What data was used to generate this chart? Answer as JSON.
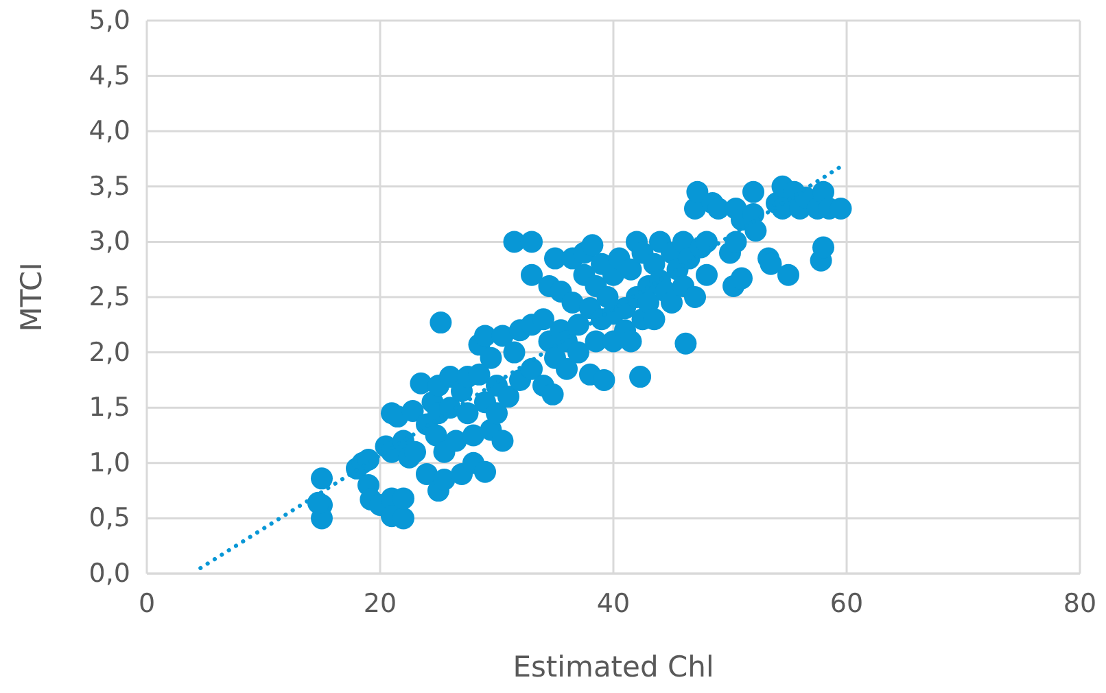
{
  "chart_data": {
    "type": "scatter",
    "xlabel": "Estimated Chl",
    "ylabel": "MTCI",
    "xlim": [
      0,
      80
    ],
    "xticks": [
      0,
      20,
      40,
      60,
      80
    ],
    "ylim": [
      0,
      5
    ],
    "yticks": [
      {
        "value": 0,
        "label": "0,0"
      },
      {
        "value": 0.5,
        "label": "0,5"
      },
      {
        "value": 1,
        "label": "1,0"
      },
      {
        "value": 1.5,
        "label": "1,5"
      },
      {
        "value": 2,
        "label": "2,0"
      },
      {
        "value": 2.5,
        "label": "2,5"
      },
      {
        "value": 3,
        "label": "3,0"
      },
      {
        "value": 3.5,
        "label": "3,5"
      },
      {
        "value": 4,
        "label": "4,0"
      },
      {
        "value": 4.5,
        "label": "4,5"
      },
      {
        "value": 5,
        "label": "5,0"
      }
    ],
    "grid": true,
    "series": [
      {
        "marker": "circle",
        "color": "#0897d6",
        "x": [
          15,
          15,
          15,
          14.7,
          18,
          18.5,
          19,
          19,
          19.2,
          20,
          20.5,
          21,
          21,
          21,
          21,
          22,
          22,
          21.5,
          22,
          22.5,
          22.8,
          23,
          23.5,
          24,
          24,
          24.5,
          24.8,
          25,
          25,
          25.2,
          25,
          25.5,
          25.5,
          26,
          26,
          26.5,
          27,
          27,
          27.5,
          27.5,
          28,
          28,
          28.5,
          28.5,
          29,
          29,
          29,
          29.5,
          29.5,
          30,
          30,
          30.5,
          30.5,
          31,
          31.5,
          31.5,
          32,
          32,
          33,
          33,
          33,
          33,
          34,
          34,
          34.5,
          34.5,
          34.8,
          35,
          35,
          35.5,
          35.5,
          36,
          36,
          36.5,
          36.5,
          37,
          37,
          37.5,
          37.5,
          38,
          38,
          38.2,
          38.5,
          38.5,
          39,
          39,
          39.2,
          39.5,
          40,
          40,
          40,
          40.5,
          41,
          41,
          41.5,
          41.5,
          42,
          42,
          42.3,
          42.5,
          42.5,
          43,
          43,
          43.5,
          43.5,
          44,
          44,
          44.5,
          45,
          45,
          45.5,
          46,
          46,
          46.2,
          46.5,
          47,
          47.2,
          47,
          47.5,
          48,
          48,
          48.5,
          49,
          50,
          50.3,
          50.5,
          50.5,
          51,
          51,
          52,
          52,
          52.2,
          53.3,
          53.5,
          54,
          54.5,
          54.5,
          55,
          55.5,
          56,
          56.5,
          57.5,
          57.8,
          58,
          58,
          58.5,
          59.5
        ],
        "values": [
          0.86,
          0.62,
          0.5,
          0.64,
          0.95,
          1.0,
          1.03,
          0.8,
          0.67,
          0.62,
          1.15,
          1.45,
          1.1,
          0.68,
          0.52,
          0.5,
          0.68,
          1.42,
          1.2,
          1.05,
          1.47,
          1.1,
          1.72,
          1.35,
          0.9,
          1.55,
          1.25,
          1.7,
          0.75,
          2.27,
          1.45,
          0.85,
          1.1,
          1.78,
          1.5,
          1.2,
          1.65,
          0.9,
          1.78,
          1.45,
          1.25,
          1.0,
          1.8,
          2.07,
          2.15,
          1.55,
          0.92,
          1.3,
          1.95,
          1.7,
          1.45,
          1.2,
          2.15,
          1.6,
          3.0,
          2.0,
          2.2,
          1.75,
          3.0,
          2.7,
          2.25,
          1.85,
          2.3,
          1.7,
          2.6,
          2.1,
          1.62,
          2.85,
          1.95,
          2.55,
          2.2,
          1.85,
          2.1,
          2.85,
          2.45,
          2.0,
          2.25,
          2.7,
          2.9,
          1.8,
          2.4,
          2.97,
          2.1,
          2.6,
          2.8,
          2.3,
          1.75,
          2.5,
          2.1,
          2.7,
          2.35,
          2.85,
          2.2,
          2.4,
          2.75,
          2.1,
          3.0,
          2.5,
          1.78,
          2.3,
          2.9,
          2.6,
          2.45,
          2.8,
          2.3,
          3.0,
          2.65,
          2.55,
          2.9,
          2.45,
          2.75,
          3.0,
          2.6,
          2.08,
          2.85,
          3.3,
          3.45,
          2.5,
          2.95,
          3.0,
          2.7,
          3.35,
          3.3,
          2.9,
          2.6,
          3.3,
          3.0,
          2.67,
          3.2,
          3.45,
          3.25,
          3.1,
          2.85,
          2.8,
          3.35,
          3.3,
          3.5,
          2.7,
          3.45,
          3.3,
          3.4,
          3.3,
          2.83,
          2.95,
          3.45,
          3.3,
          3.3
        ]
      },
      {
        "type": "line",
        "marker": "none",
        "color": "#0897d6",
        "line_style": "dotted",
        "x": [
          4.6,
          59.5
        ],
        "values": [
          0.05,
          3.68
        ]
      }
    ]
  }
}
